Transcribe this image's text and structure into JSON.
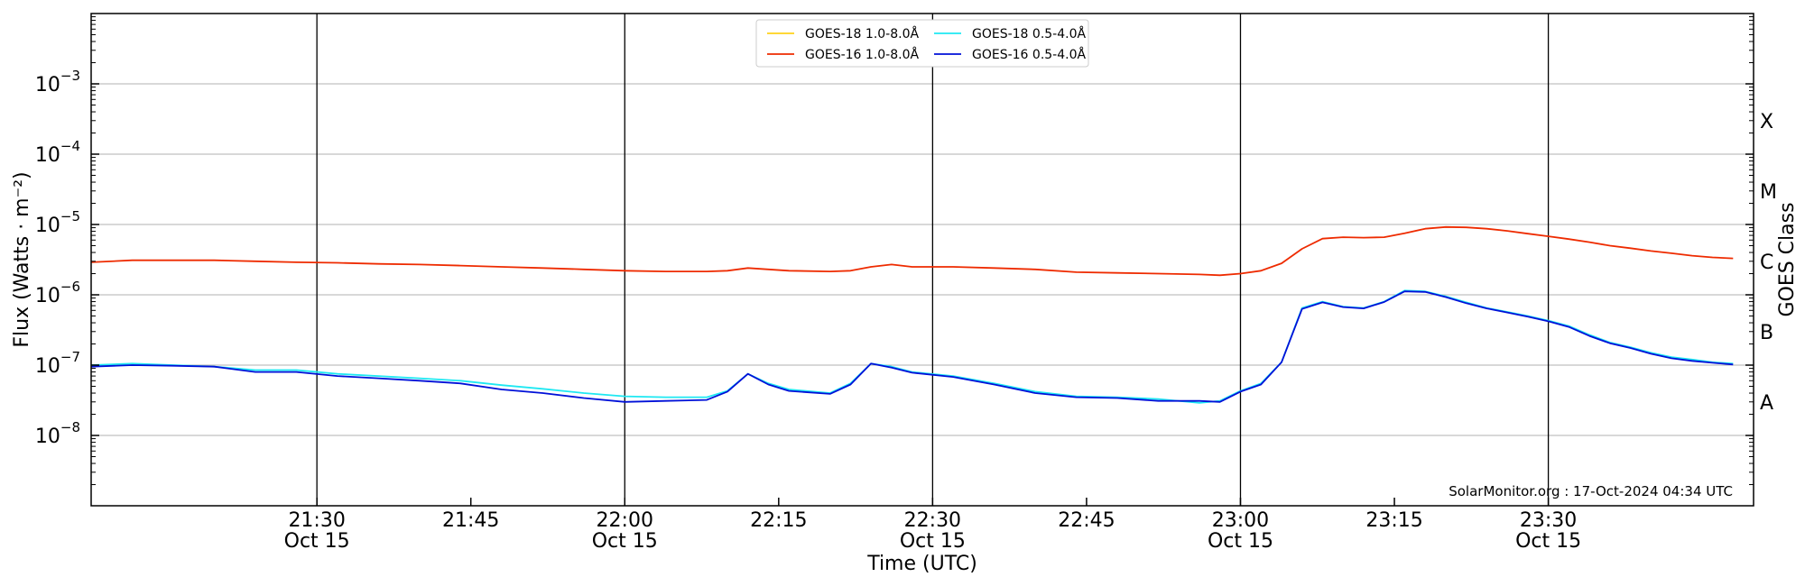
{
  "chart_data": {
    "type": "line",
    "title": "",
    "xlabel": "Time (UTC)",
    "ylabel": "Flux (Watts · m⁻²)",
    "y2label": "GOES Class",
    "yscale": "log",
    "ylim": [
      1e-09,
      0.01
    ],
    "xlim": [
      "21:08",
      "23:50"
    ],
    "xticks": [
      {
        "t": "21:30",
        "label": "21:30",
        "sub": "Oct 15"
      },
      {
        "t": "21:45",
        "label": "21:45",
        "sub": ""
      },
      {
        "t": "22:00",
        "label": "22:00",
        "sub": "Oct 15"
      },
      {
        "t": "22:15",
        "label": "22:15",
        "sub": ""
      },
      {
        "t": "22:30",
        "label": "22:30",
        "sub": "Oct 15"
      },
      {
        "t": "22:45",
        "label": "22:45",
        "sub": ""
      },
      {
        "t": "23:00",
        "label": "23:00",
        "sub": "Oct 15"
      },
      {
        "t": "23:15",
        "label": "23:15",
        "sub": ""
      },
      {
        "t": "23:30",
        "label": "23:30",
        "sub": "Oct 15"
      }
    ],
    "vlines": [
      "21:30",
      "22:00",
      "22:30",
      "23:00",
      "23:30"
    ],
    "yticks": [
      {
        "value": 0.001,
        "base": "10",
        "exp": "−3"
      },
      {
        "value": 0.0001,
        "base": "10",
        "exp": "−4"
      },
      {
        "value": 1e-05,
        "base": "10",
        "exp": "−5"
      },
      {
        "value": 1e-06,
        "base": "10",
        "exp": "−6"
      },
      {
        "value": 1e-07,
        "base": "10",
        "exp": "−7"
      },
      {
        "value": 1e-08,
        "base": "10",
        "exp": "−8"
      }
    ],
    "goes_classes": [
      {
        "label": "X",
        "value": 0.0003
      },
      {
        "label": "M",
        "value": 3e-05
      },
      {
        "label": "C",
        "value": 3e-06
      },
      {
        "label": "B",
        "value": 3e-07
      },
      {
        "label": "A",
        "value": 3e-08
      }
    ],
    "grid": true,
    "legend_position": "top-center",
    "credit": "SolarMonitor.org : 17-Oct-2024 04:34 UTC",
    "series": [
      {
        "name": "GOES-18 1.0-8.0Å",
        "color": "#ffd21a",
        "points": []
      },
      {
        "name": "GOES-16 1.0-8.0Å",
        "color": "#ee2b00",
        "points": [
          [
            "21:08",
            2.9e-06
          ],
          [
            "21:12",
            3.1e-06
          ],
          [
            "21:16",
            3.1e-06
          ],
          [
            "21:20",
            3.1e-06
          ],
          [
            "21:24",
            3e-06
          ],
          [
            "21:28",
            2.9e-06
          ],
          [
            "21:32",
            2.85e-06
          ],
          [
            "21:36",
            2.75e-06
          ],
          [
            "21:40",
            2.7e-06
          ],
          [
            "21:44",
            2.6e-06
          ],
          [
            "21:48",
            2.5e-06
          ],
          [
            "21:52",
            2.4e-06
          ],
          [
            "21:56",
            2.3e-06
          ],
          [
            "22:00",
            2.2e-06
          ],
          [
            "22:04",
            2.15e-06
          ],
          [
            "22:08",
            2.15e-06
          ],
          [
            "22:10",
            2.2e-06
          ],
          [
            "22:12",
            2.4e-06
          ],
          [
            "22:14",
            2.3e-06
          ],
          [
            "22:16",
            2.2e-06
          ],
          [
            "22:20",
            2.15e-06
          ],
          [
            "22:22",
            2.2e-06
          ],
          [
            "22:24",
            2.5e-06
          ],
          [
            "22:26",
            2.7e-06
          ],
          [
            "22:28",
            2.5e-06
          ],
          [
            "22:32",
            2.5e-06
          ],
          [
            "22:36",
            2.4e-06
          ],
          [
            "22:40",
            2.3e-06
          ],
          [
            "22:44",
            2.1e-06
          ],
          [
            "22:48",
            2.05e-06
          ],
          [
            "22:52",
            2e-06
          ],
          [
            "22:56",
            1.95e-06
          ],
          [
            "22:58",
            1.9e-06
          ],
          [
            "23:00",
            2e-06
          ],
          [
            "23:02",
            2.2e-06
          ],
          [
            "23:04",
            2.8e-06
          ],
          [
            "23:06",
            4.5e-06
          ],
          [
            "23:08",
            6.3e-06
          ],
          [
            "23:10",
            6.6e-06
          ],
          [
            "23:12",
            6.5e-06
          ],
          [
            "23:14",
            6.6e-06
          ],
          [
            "23:16",
            7.5e-06
          ],
          [
            "23:18",
            8.7e-06
          ],
          [
            "23:20",
            9.2e-06
          ],
          [
            "23:22",
            9.1e-06
          ],
          [
            "23:24",
            8.7e-06
          ],
          [
            "23:26",
            8.1e-06
          ],
          [
            "23:28",
            7.4e-06
          ],
          [
            "23:30",
            6.8e-06
          ],
          [
            "23:32",
            6.2e-06
          ],
          [
            "23:34",
            5.6e-06
          ],
          [
            "23:36",
            5e-06
          ],
          [
            "23:38",
            4.6e-06
          ],
          [
            "23:40",
            4.2e-06
          ],
          [
            "23:42",
            3.9e-06
          ],
          [
            "23:44",
            3.6e-06
          ],
          [
            "23:46",
            3.4e-06
          ],
          [
            "23:48",
            3.3e-06
          ]
        ]
      },
      {
        "name": "GOES-18 0.5-4.0Å",
        "color": "#1ee8f2",
        "points": [
          [
            "21:08",
            1e-07
          ],
          [
            "21:12",
            1.05e-07
          ],
          [
            "21:16",
            1e-07
          ],
          [
            "21:20",
            9.5e-08
          ],
          [
            "21:24",
            8.5e-08
          ],
          [
            "21:28",
            8.5e-08
          ],
          [
            "21:32",
            7.5e-08
          ],
          [
            "21:36",
            7e-08
          ],
          [
            "21:40",
            6.5e-08
          ],
          [
            "21:44",
            6e-08
          ],
          [
            "21:48",
            5.2e-08
          ],
          [
            "21:52",
            4.6e-08
          ],
          [
            "21:56",
            4e-08
          ],
          [
            "22:00",
            3.6e-08
          ],
          [
            "22:04",
            3.5e-08
          ],
          [
            "22:08",
            3.5e-08
          ],
          [
            "22:10",
            4.3e-08
          ],
          [
            "22:12",
            7.5e-08
          ],
          [
            "22:14",
            5.5e-08
          ],
          [
            "22:16",
            4.5e-08
          ],
          [
            "22:20",
            4e-08
          ],
          [
            "22:22",
            5.5e-08
          ],
          [
            "22:24",
            1.05e-07
          ],
          [
            "22:26",
            9.5e-08
          ],
          [
            "22:28",
            8e-08
          ],
          [
            "22:32",
            7e-08
          ],
          [
            "22:36",
            5.5e-08
          ],
          [
            "22:40",
            4.2e-08
          ],
          [
            "22:44",
            3.6e-08
          ],
          [
            "22:48",
            3.5e-08
          ],
          [
            "22:52",
            3.3e-08
          ],
          [
            "22:56",
            2.9e-08
          ],
          [
            "22:58",
            3.1e-08
          ],
          [
            "23:00",
            4.3e-08
          ],
          [
            "23:02",
            5.5e-08
          ],
          [
            "23:04",
            1.1e-07
          ],
          [
            "23:06",
            6.5e-07
          ],
          [
            "23:08",
            8e-07
          ],
          [
            "23:10",
            6.8e-07
          ],
          [
            "23:12",
            6.5e-07
          ],
          [
            "23:14",
            8e-07
          ],
          [
            "23:16",
            1.15e-06
          ],
          [
            "23:18",
            1.12e-06
          ],
          [
            "23:20",
            9.5e-07
          ],
          [
            "23:22",
            7.8e-07
          ],
          [
            "23:24",
            6.5e-07
          ],
          [
            "23:26",
            5.7e-07
          ],
          [
            "23:28",
            5e-07
          ],
          [
            "23:30",
            4.3e-07
          ],
          [
            "23:32",
            3.6e-07
          ],
          [
            "23:34",
            2.7e-07
          ],
          [
            "23:36",
            2.1e-07
          ],
          [
            "23:38",
            1.8e-07
          ],
          [
            "23:40",
            1.5e-07
          ],
          [
            "23:42",
            1.3e-07
          ],
          [
            "23:44",
            1.2e-07
          ],
          [
            "23:46",
            1.1e-07
          ],
          [
            "23:48",
            1.05e-07
          ]
        ]
      },
      {
        "name": "GOES-16 0.5-4.0Å",
        "color": "#0010d8",
        "points": [
          [
            "21:08",
            9.5e-08
          ],
          [
            "21:12",
            1e-07
          ],
          [
            "21:16",
            9.8e-08
          ],
          [
            "21:20",
            9.5e-08
          ],
          [
            "21:24",
            8e-08
          ],
          [
            "21:28",
            8e-08
          ],
          [
            "21:32",
            7e-08
          ],
          [
            "21:36",
            6.5e-08
          ],
          [
            "21:40",
            6e-08
          ],
          [
            "21:44",
            5.5e-08
          ],
          [
            "21:48",
            4.5e-08
          ],
          [
            "21:52",
            4e-08
          ],
          [
            "21:56",
            3.4e-08
          ],
          [
            "22:00",
            3e-08
          ],
          [
            "22:04",
            3.1e-08
          ],
          [
            "22:08",
            3.2e-08
          ],
          [
            "22:10",
            4.2e-08
          ],
          [
            "22:12",
            7.5e-08
          ],
          [
            "22:14",
            5.3e-08
          ],
          [
            "22:16",
            4.3e-08
          ],
          [
            "22:20",
            3.9e-08
          ],
          [
            "22:22",
            5.3e-08
          ],
          [
            "22:24",
            1.05e-07
          ],
          [
            "22:26",
            9.2e-08
          ],
          [
            "22:28",
            7.8e-08
          ],
          [
            "22:32",
            6.8e-08
          ],
          [
            "22:36",
            5.3e-08
          ],
          [
            "22:40",
            4e-08
          ],
          [
            "22:44",
            3.5e-08
          ],
          [
            "22:48",
            3.4e-08
          ],
          [
            "22:52",
            3.1e-08
          ],
          [
            "22:56",
            3.1e-08
          ],
          [
            "22:58",
            3e-08
          ],
          [
            "23:00",
            4.2e-08
          ],
          [
            "23:02",
            5.3e-08
          ],
          [
            "23:04",
            1.1e-07
          ],
          [
            "23:06",
            6.3e-07
          ],
          [
            "23:08",
            7.8e-07
          ],
          [
            "23:10",
            6.7e-07
          ],
          [
            "23:12",
            6.4e-07
          ],
          [
            "23:14",
            7.9e-07
          ],
          [
            "23:16",
            1.12e-06
          ],
          [
            "23:18",
            1.1e-06
          ],
          [
            "23:20",
            9.3e-07
          ],
          [
            "23:22",
            7.6e-07
          ],
          [
            "23:24",
            6.4e-07
          ],
          [
            "23:26",
            5.6e-07
          ],
          [
            "23:28",
            4.9e-07
          ],
          [
            "23:30",
            4.2e-07
          ],
          [
            "23:32",
            3.5e-07
          ],
          [
            "23:34",
            2.6e-07
          ],
          [
            "23:36",
            2.05e-07
          ],
          [
            "23:38",
            1.75e-07
          ],
          [
            "23:40",
            1.45e-07
          ],
          [
            "23:42",
            1.25e-07
          ],
          [
            "23:44",
            1.15e-07
          ],
          [
            "23:46",
            1.08e-07
          ],
          [
            "23:48",
            1.02e-07
          ]
        ]
      }
    ]
  }
}
